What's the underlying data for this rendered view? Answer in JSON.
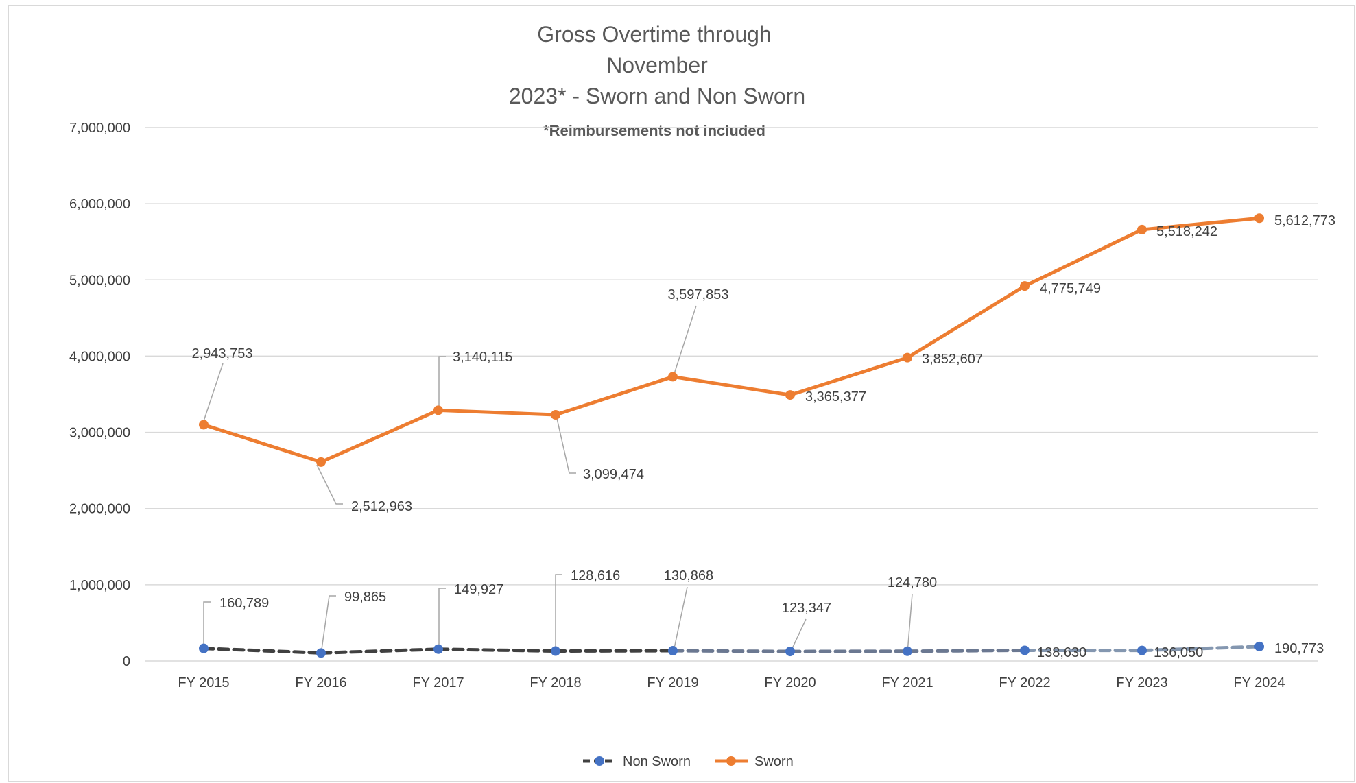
{
  "chart_data": {
    "type": "line",
    "title_lines": [
      "Gross Overtime through",
      "November",
      "2023* - Sworn and Non Sworn"
    ],
    "subtitle": "*Reimbursements not included",
    "xlabel": "",
    "ylabel": "",
    "categories": [
      "FY 2015",
      "FY 2016",
      "FY 2017",
      "FY 2018",
      "FY 2019",
      "FY 2020",
      "FY 2021",
      "FY 2022",
      "FY 2023",
      "FY 2024"
    ],
    "ylim": [
      0,
      7000000
    ],
    "yticks": [
      0,
      1000000,
      2000000,
      3000000,
      4000000,
      5000000,
      6000000,
      7000000
    ],
    "ytick_labels": [
      "0",
      "1,000,000",
      "2,000,000",
      "3,000,000",
      "4,000,000",
      "5,000,000",
      "6,000,000",
      "7,000,000"
    ],
    "grid": true,
    "legend_position": "bottom",
    "series": [
      {
        "name": "Non Sworn",
        "color": "#4472c4",
        "line_style": "dashed",
        "values": [
          160789,
          99865,
          149927,
          128616,
          130868,
          123347,
          124780,
          138630,
          136050,
          190773
        ],
        "plotted_values": [
          165000,
          105000,
          155000,
          130000,
          135000,
          125000,
          128000,
          140000,
          138000,
          190000
        ],
        "data_labels": [
          "160,789",
          "99,865",
          "149,927",
          "128,616",
          "130,868",
          "123,347",
          "124,780",
          "138,630",
          "136,050",
          "190,773"
        ]
      },
      {
        "name": "Sworn",
        "color": "#ed7d31",
        "line_style": "solid",
        "values": [
          2943753,
          2512963,
          3140115,
          3099474,
          3597853,
          3365377,
          3852607,
          4775749,
          5518242,
          5612773
        ],
        "plotted_values": [
          3100000,
          2610000,
          3290000,
          3230000,
          3730000,
          3490000,
          3980000,
          4920000,
          5660000,
          5810000
        ],
        "data_labels": [
          "2,943,753",
          "2,512,963",
          "3,140,115",
          "3,099,474",
          "3,597,853",
          "3,365,377",
          "3,852,607",
          "4,775,749",
          "5,518,242",
          "5,612,773"
        ]
      }
    ]
  }
}
